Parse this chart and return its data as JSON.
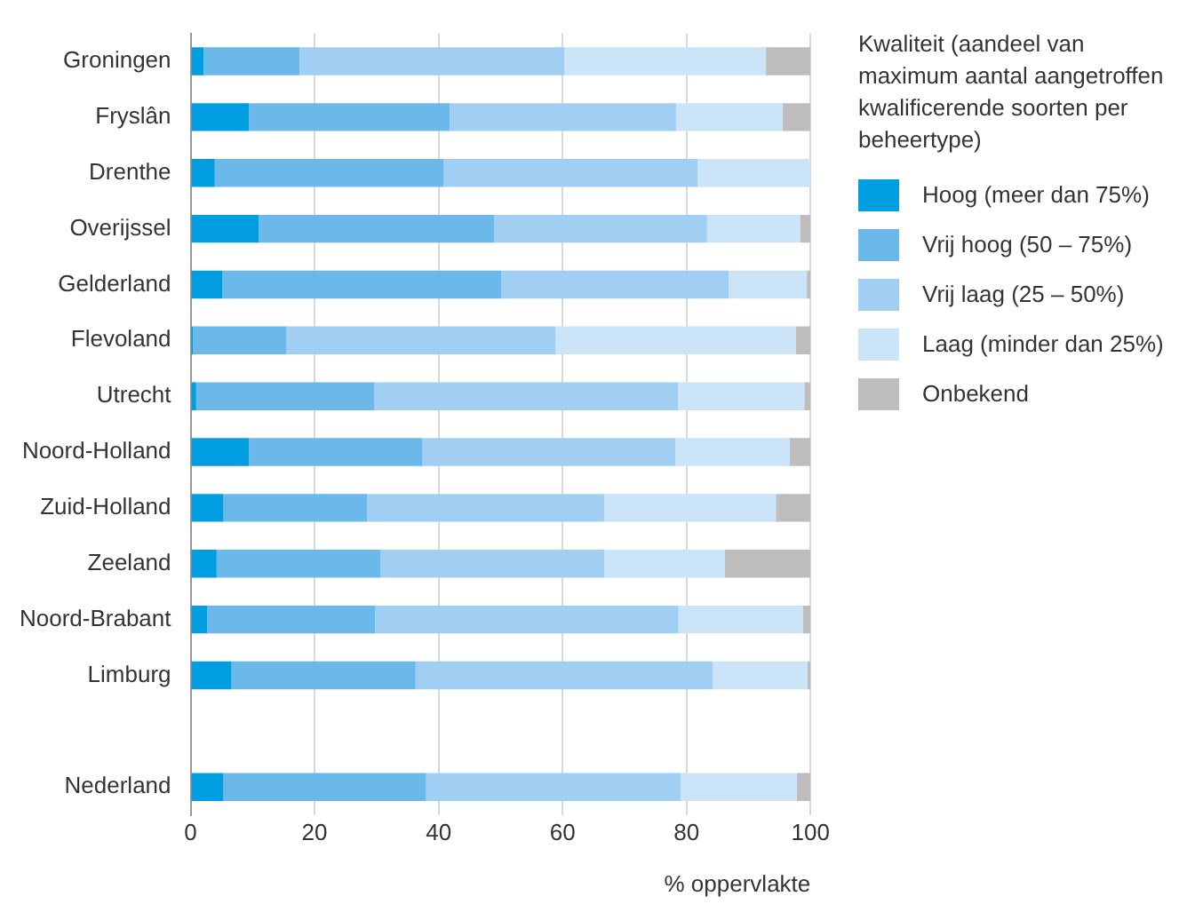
{
  "chart_data": {
    "type": "bar",
    "orientation": "horizontal",
    "stacked": true,
    "xlabel": "% oppervlakte",
    "legend_title": "Kwaliteit (aandeel van maximum aantal aangetroffen kwalificerende soorten per beheertype)",
    "legend": "right",
    "grid": "x",
    "xlim": [
      0,
      100
    ],
    "xticks": [
      0,
      20,
      40,
      60,
      80,
      100
    ],
    "categories": [
      "Groningen",
      "Fryslân",
      "Drenthe",
      "Overijssel",
      "Gelderland",
      "Flevoland",
      "Utrecht",
      "Noord-Holland",
      "Zuid-Holland",
      "Zeeland",
      "Noord-Brabant",
      "Limburg",
      null,
      "Nederland"
    ],
    "series": [
      {
        "name": "Hoog (meer dan 75%)",
        "color": "#009ee0",
        "values": [
          2.1,
          9.4,
          3.9,
          11.0,
          5.1,
          0.4,
          0.9,
          9.4,
          5.3,
          4.2,
          2.7,
          6.6,
          null,
          5.3
        ]
      },
      {
        "name": "Vrij hoog (50  – 75%)",
        "color": "#6bb9ea",
        "values": [
          15.5,
          32.4,
          36.9,
          38.0,
          45.0,
          15.0,
          28.7,
          28.0,
          23.2,
          26.4,
          27.1,
          29.7,
          null,
          32.7
        ]
      },
      {
        "name": "Vrij laag (25 – 50%)",
        "color": "#a0cff3",
        "values": [
          42.7,
          36.5,
          41.0,
          34.3,
          36.7,
          43.5,
          49.0,
          40.8,
          38.2,
          36.1,
          48.9,
          47.9,
          null,
          41.1
        ]
      },
      {
        "name": "Laag (minder dan 25%)",
        "color": "#cbe4f8",
        "values": [
          32.5,
          17.2,
          18.2,
          15.0,
          12.6,
          38.7,
          20.4,
          18.4,
          27.7,
          19.5,
          20.1,
          15.3,
          null,
          18.7
        ]
      },
      {
        "name": "Onbekend",
        "color": "#bdbdbd",
        "values": [
          7.2,
          4.5,
          0,
          1.7,
          0.6,
          2.4,
          1.0,
          3.4,
          5.6,
          13.8,
          1.2,
          0.5,
          null,
          2.2
        ]
      }
    ]
  }
}
